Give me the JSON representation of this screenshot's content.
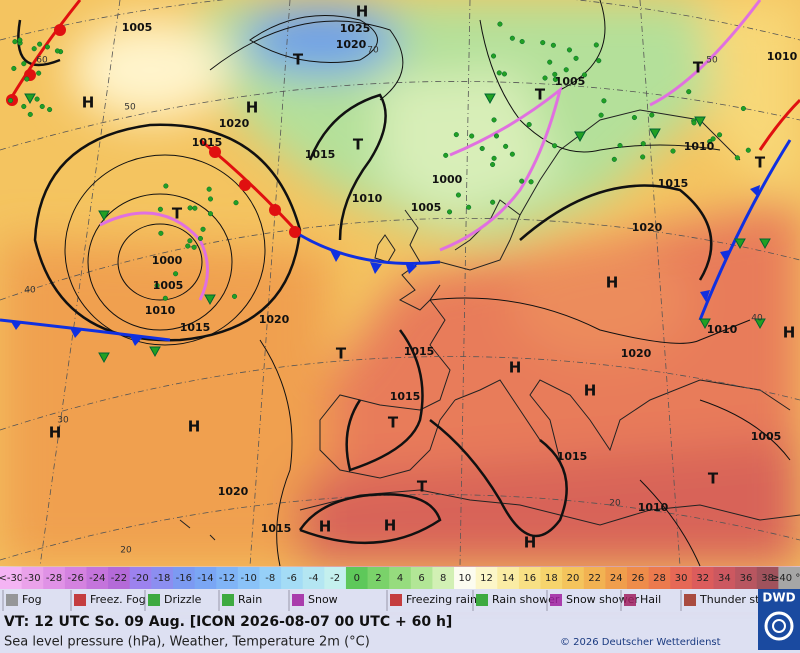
{
  "map": {
    "isobar_labels": [
      1005,
      1025,
      1020,
      1020,
      1015,
      1015,
      1000,
      1010,
      1005,
      1000,
      1005,
      1010,
      1015,
      1020,
      1015,
      1020,
      1015,
      1010,
      1020,
      1010,
      1015,
      1005,
      1015,
      1005,
      1010,
      1020,
      1015,
      1010
    ],
    "centers": [
      "H",
      "H",
      "H",
      "H",
      "H",
      "H",
      "H",
      "H",
      "H",
      "H",
      "H",
      "H",
      "T",
      "T",
      "T",
      "T",
      "T",
      "T",
      "T",
      "T",
      "T",
      "T"
    ],
    "grid_labels": [
      60,
      50,
      40,
      30,
      20,
      70,
      50,
      40,
      20
    ]
  },
  "temperature_scale": [
    {
      "label": "<-30",
      "color": "#f4b4f4"
    },
    {
      "label": "-30",
      "color": "#eaa2ea"
    },
    {
      "label": "-28",
      "color": "#e092e6"
    },
    {
      "label": "-26",
      "color": "#d482e0"
    },
    {
      "label": "-24",
      "color": "#c474dc"
    },
    {
      "label": "-22",
      "color": "#b46ad8"
    },
    {
      "label": "-20",
      "color": "#9c82ee"
    },
    {
      "label": "-18",
      "color": "#8c8ef0"
    },
    {
      "label": "-16",
      "color": "#7c9af2"
    },
    {
      "label": "-14",
      "color": "#7aa6f4"
    },
    {
      "label": "-12",
      "color": "#80b4f6"
    },
    {
      "label": "-10",
      "color": "#8ac2f8"
    },
    {
      "label": "-8",
      "color": "#96d0f8"
    },
    {
      "label": "-6",
      "color": "#a4dcf6"
    },
    {
      "label": "-4",
      "color": "#b4e6f2"
    },
    {
      "label": "-2",
      "color": "#c4f0ee"
    },
    {
      "label": "0",
      "color": "#5ec85a"
    },
    {
      "label": "2",
      "color": "#7ad26a"
    },
    {
      "label": "4",
      "color": "#96dc7e"
    },
    {
      "label": "6",
      "color": "#b2e696"
    },
    {
      "label": "8",
      "color": "#d2f0b4"
    },
    {
      "label": "10",
      "color": "#fcfcf0"
    },
    {
      "label": "12",
      "color": "#fcf6c8"
    },
    {
      "label": "14",
      "color": "#faeca4"
    },
    {
      "label": "16",
      "color": "#f8e084"
    },
    {
      "label": "18",
      "color": "#f6d46c"
    },
    {
      "label": "20",
      "color": "#f4c45c"
    },
    {
      "label": "22",
      "color": "#f2b252"
    },
    {
      "label": "24",
      "color": "#f09e4c"
    },
    {
      "label": "26",
      "color": "#ee8c4a"
    },
    {
      "label": "28",
      "color": "#ec7a4e"
    },
    {
      "label": "30",
      "color": "#e66856"
    },
    {
      "label": "32",
      "color": "#dc5c5c"
    },
    {
      "label": "34",
      "color": "#cc5860"
    },
    {
      "label": "36",
      "color": "#b85660"
    },
    {
      "label": "38",
      "color": "#a0525c"
    },
    {
      "label": "≥40 °C",
      "color": "#a6a6a6"
    }
  ],
  "weather_legend": [
    "Fog",
    "Freez. Fog",
    "Drizzle",
    "Rain",
    "Snow",
    "Freezing rain",
    "Rain shower",
    "Snow shower",
    "Hail",
    "Thunder storm"
  ],
  "logo": "DWD",
  "footer": {
    "valid_time": "VT: 12 UTC So.  09 Aug. [ICON 2026-08-07  00 UTC + 60 h]",
    "description": "Sea level pressure (hPa), Weather, Temperature 2m (°C)",
    "copyright": "© 2026 Deutscher Wetterdienst"
  }
}
